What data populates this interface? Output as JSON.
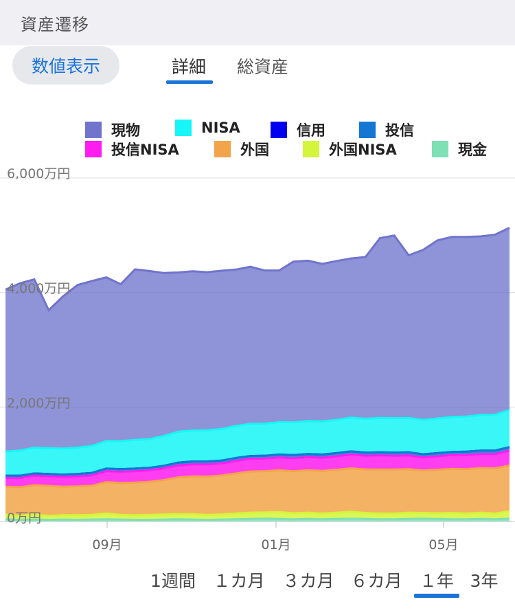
{
  "header": {
    "title": "資産遷移"
  },
  "controls": {
    "numeric_button": "数値表示",
    "tabs": [
      {
        "label": "詳細",
        "selected": true
      },
      {
        "label": "総資産",
        "selected": false
      }
    ],
    "accent_color": "#1a73d9"
  },
  "periods": [
    {
      "label": "1週間",
      "selected": false
    },
    {
      "label": "１カ月",
      "selected": false
    },
    {
      "label": "３カ月",
      "selected": false
    },
    {
      "label": "６カ月",
      "selected": false
    },
    {
      "label": "１年",
      "selected": true
    },
    {
      "label": "3年",
      "selected": false
    }
  ],
  "chart_data": {
    "type": "area",
    "stacked": true,
    "title": "",
    "xlabel": "",
    "ylabel": "",
    "y_unit": "万円",
    "ylim": [
      0,
      6000
    ],
    "yticks": [
      {
        "value": 0,
        "label": "0万円"
      },
      {
        "value": 2000,
        "label": "2,000万円"
      },
      {
        "value": 4000,
        "label": "4,000万円"
      },
      {
        "value": 6000,
        "label": "6,000万円"
      }
    ],
    "xticks": [
      "09月",
      "01月",
      "05月"
    ],
    "x": [
      "07月上旬",
      "07月中旬",
      "07月下旬",
      "08月上旬",
      "08月中旬",
      "08月下旬",
      "09月上旬",
      "09月中旬",
      "09月下旬",
      "10月上旬",
      "10月中旬",
      "10月下旬",
      "11月上旬",
      "11月中旬",
      "11月下旬",
      "12月上旬",
      "12月中旬",
      "12月下旬",
      "01月上旬",
      "01月中旬",
      "01月下旬",
      "02月上旬",
      "02月中旬",
      "02月下旬",
      "03月上旬",
      "03月中旬",
      "03月下旬",
      "04月上旬",
      "04月中旬",
      "04月下旬",
      "05月上旬",
      "05月中旬",
      "05月下旬",
      "06月上旬",
      "06月中旬",
      "06月下旬"
    ],
    "legend_position": "top",
    "grid": true,
    "series": [
      {
        "name": "現金",
        "color": "#7ee0b5",
        "values": [
          40,
          30,
          35,
          30,
          35,
          30,
          35,
          40,
          35,
          30,
          30,
          35,
          40,
          35,
          30,
          35,
          40,
          45,
          50,
          45,
          40,
          45,
          40,
          45,
          50,
          45,
          40,
          40,
          45,
          50,
          45,
          40,
          40,
          45,
          40,
          50
        ]
      },
      {
        "name": "外国NISA",
        "color": "#d4f53a",
        "values": [
          80,
          70,
          90,
          70,
          75,
          80,
          80,
          100,
          80,
          80,
          85,
          90,
          90,
          95,
          85,
          90,
          100,
          110,
          110,
          120,
          105,
          110,
          100,
          110,
          120,
          105,
          100,
          100,
          110,
          100,
          100,
          110,
          100,
          110,
          100,
          130
        ]
      },
      {
        "name": "外国",
        "color": "#f2a44a",
        "values": [
          490,
          500,
          510,
          520,
          500,
          505,
          510,
          550,
          560,
          570,
          580,
          600,
          640,
          660,
          670,
          680,
          700,
          720,
          720,
          730,
          735,
          740,
          745,
          750,
          760,
          760,
          770,
          770,
          760,
          740,
          760,
          770,
          775,
          780,
          790,
          800
        ]
      },
      {
        "name": "投信NISA",
        "color": "#ff1cf0",
        "values": [
          150,
          160,
          165,
          170,
          170,
          175,
          180,
          190,
          195,
          200,
          200,
          205,
          210,
          210,
          215,
          210,
          220,
          220,
          220,
          225,
          225,
          230,
          230,
          235,
          240,
          240,
          245,
          240,
          240,
          230,
          235,
          240,
          245,
          245,
          250,
          260
        ]
      },
      {
        "name": "投信",
        "color": "#1477d3",
        "values": [
          40,
          40,
          40,
          40,
          40,
          40,
          45,
          45,
          45,
          45,
          45,
          45,
          50,
          50,
          50,
          50,
          50,
          50,
          50,
          50,
          55,
          55,
          55,
          55,
          55,
          55,
          55,
          55,
          55,
          55,
          55,
          55,
          60,
          60,
          60,
          60
        ]
      },
      {
        "name": "信用",
        "color": "#0000ee",
        "values": [
          0,
          0,
          0,
          0,
          0,
          0,
          0,
          0,
          0,
          0,
          0,
          0,
          0,
          0,
          0,
          0,
          0,
          0,
          0,
          0,
          0,
          0,
          0,
          0,
          0,
          0,
          0,
          0,
          0,
          0,
          0,
          0,
          0,
          0,
          0,
          0
        ]
      },
      {
        "name": "NISA",
        "color": "#17f6f6",
        "values": [
          420,
          440,
          450,
          450,
          455,
          460,
          470,
          480,
          490,
          500,
          500,
          520,
          540,
          540,
          545,
          550,
          560,
          560,
          560,
          565,
          570,
          575,
          580,
          580,
          590,
          590,
          600,
          600,
          600,
          600,
          605,
          610,
          615,
          620,
          625,
          650
        ]
      },
      {
        "name": "現物",
        "color": "#7074cc",
        "values": [
          2830,
          2920,
          2940,
          2410,
          2660,
          2840,
          2880,
          2860,
          2740,
          2980,
          2935,
          2845,
          2780,
          2780,
          2760,
          2765,
          2730,
          2745,
          2675,
          2650,
          2810,
          2800,
          2750,
          2775,
          2780,
          2825,
          3140,
          3190,
          2840,
          2970,
          3110,
          3145,
          3135,
          3120,
          3145,
          3180
        ]
      }
    ]
  },
  "legend": [
    {
      "name": "現物",
      "color": "#7074cc"
    },
    {
      "name": "NISA",
      "color": "#17f6f6"
    },
    {
      "name": "信用",
      "color": "#0000ee"
    },
    {
      "name": "投信",
      "color": "#1477d3"
    },
    {
      "name": "投信NISA",
      "color": "#ff1cf0"
    },
    {
      "name": "外国",
      "color": "#f2a44a"
    },
    {
      "name": "外国NISA",
      "color": "#d4f53a"
    },
    {
      "name": "現金",
      "color": "#7ee0b5"
    }
  ]
}
